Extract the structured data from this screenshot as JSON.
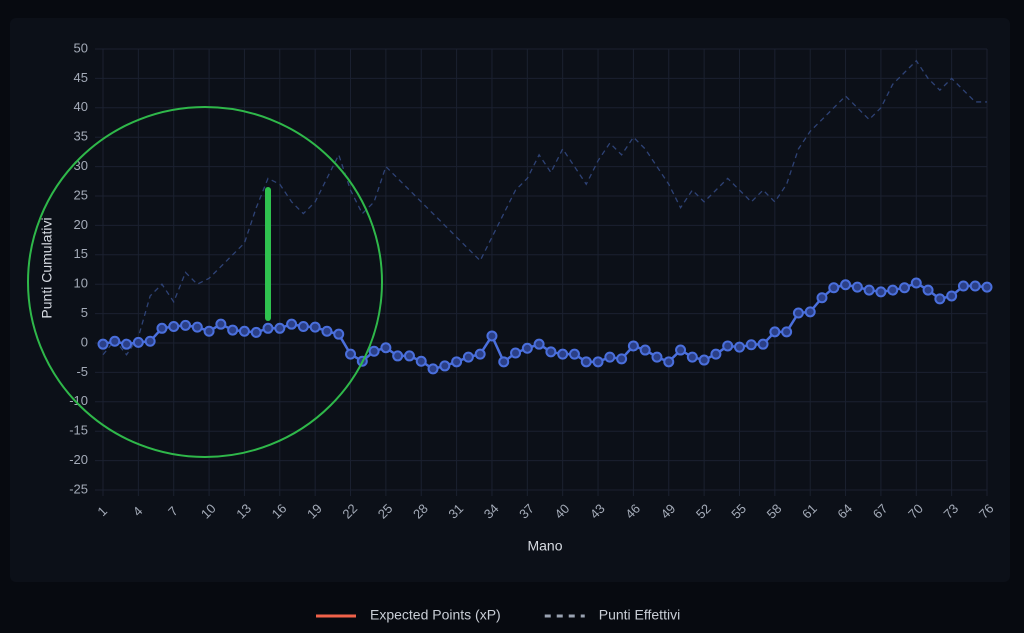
{
  "chart_data": {
    "type": "line",
    "y_label": "Punti Cumulativi",
    "x_label": "Mano",
    "categories": [
      1,
      null,
      null,
      4,
      null,
      null,
      7,
      null,
      null,
      10,
      null,
      null,
      13,
      null,
      null,
      16,
      null,
      null,
      19,
      null,
      null,
      22,
      null,
      null,
      25,
      null,
      null,
      28,
      null,
      null,
      31,
      null,
      null,
      34,
      null,
      null,
      37,
      null,
      null,
      40,
      null,
      null,
      43,
      null,
      null,
      46,
      null,
      null,
      49,
      null,
      null,
      52,
      null,
      null,
      55,
      null,
      null,
      58,
      null,
      null,
      61,
      null,
      null,
      64,
      null,
      null,
      67,
      null,
      null,
      70,
      null,
      null,
      73,
      null,
      null,
      76
    ],
    "series": [
      {
        "name": "Expected Points (xP)",
        "color": "#4a6fdc",
        "legend_color": "#f0624a",
        "dash": false,
        "markers": true,
        "values": [
          -0.2,
          0.3,
          -0.2,
          0.1,
          0.3,
          2.5,
          2.8,
          3,
          2.7,
          2,
          3.2,
          2.2,
          2,
          1.8,
          2.5,
          2.5,
          3.2,
          2.8,
          2.7,
          2,
          1.5,
          -1.9,
          -3.1,
          -1.4,
          -0.8,
          -2.2,
          -2.2,
          -3.1,
          -4.4,
          -3.9,
          -3.2,
          -2.4,
          -1.9,
          1.2,
          -3.2,
          -1.7,
          -0.9,
          -0.2,
          -1.5,
          -1.9,
          -1.9,
          -3.2,
          -3.2,
          -2.4,
          -2.7,
          -0.5,
          -1.2,
          -2.4,
          -3.2,
          -1.2,
          -2.4,
          -2.9,
          -1.9,
          -0.5,
          -0.7,
          -0.3,
          -0.2,
          1.9,
          1.9,
          5.1,
          5.3,
          7.7,
          9.4,
          9.9,
          9.5,
          9,
          8.7,
          9,
          9.4,
          10.2,
          9,
          7.5,
          8,
          9.7,
          9.7,
          9.5
        ]
      },
      {
        "name": "Punti Effettivi",
        "color": "#2e4275",
        "legend_color": "#9aa3b2",
        "dash": true,
        "markers": false,
        "values": [
          -2,
          0.5,
          -2,
          1,
          8,
          10,
          7,
          12,
          10,
          11,
          13,
          15,
          17,
          23,
          28,
          27,
          24,
          22,
          24,
          28,
          32,
          26,
          22,
          24,
          30,
          28,
          26,
          24,
          22,
          20,
          18,
          16,
          14,
          18,
          22,
          26,
          28,
          32,
          29,
          33,
          30,
          27,
          31,
          34,
          32,
          35,
          33,
          30,
          27,
          23,
          26,
          24,
          26,
          28,
          26,
          24,
          26,
          24,
          27,
          33,
          36,
          38,
          40,
          42,
          40,
          38,
          40,
          44,
          46,
          48,
          45,
          43,
          45,
          43,
          41,
          41
        ]
      }
    ],
    "ylim": [
      -25,
      50
    ],
    "yticks": [
      -25,
      -20,
      -15,
      -10,
      -5,
      0,
      5,
      10,
      15,
      20,
      25,
      30,
      35,
      40,
      45,
      50
    ],
    "grid": true
  }
}
